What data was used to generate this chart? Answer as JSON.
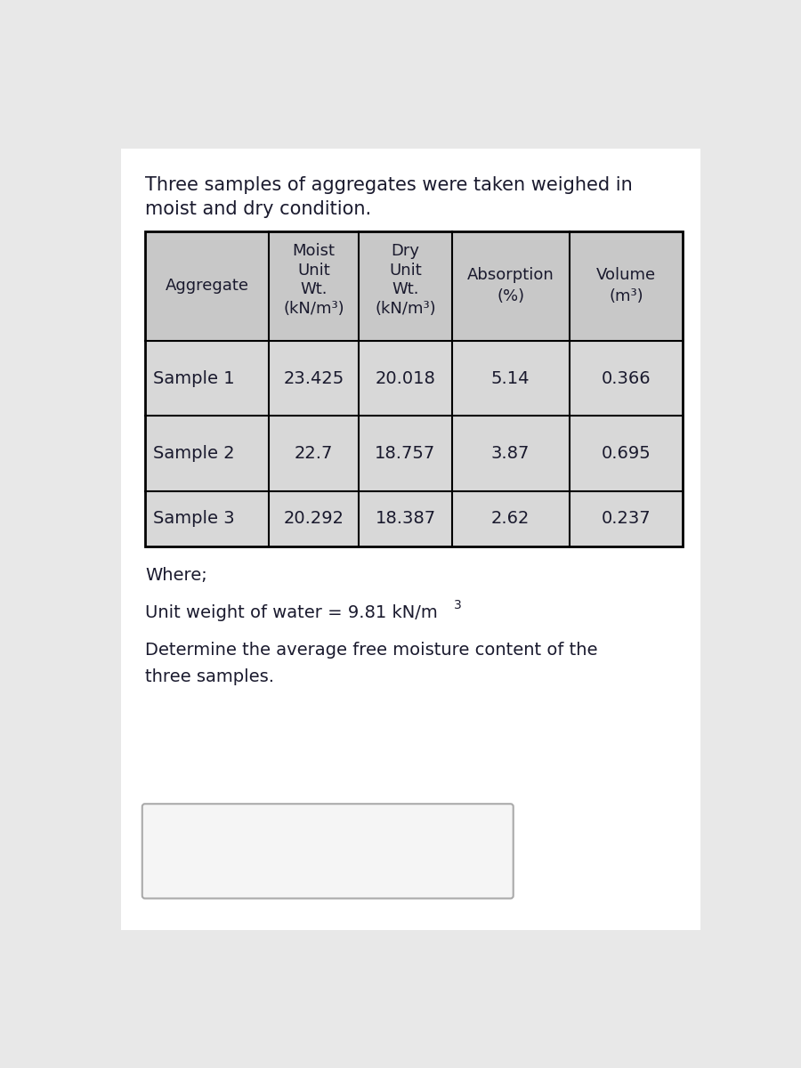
{
  "title_line1": "Three samples of aggregates were taken weighed in",
  "title_line2": "moist and dry condition.",
  "rows": [
    [
      "Sample 1",
      "23.425",
      "20.018",
      "5.14",
      "0.366"
    ],
    [
      "Sample 2",
      "22.7",
      "18.757",
      "3.87",
      "0.695"
    ],
    [
      "Sample 3",
      "20.292",
      "18.387",
      "2.62",
      "0.237"
    ]
  ],
  "where_text": "Where;",
  "unit_weight_text": "Unit weight of water = 9.81 kN/m",
  "unit_weight_exp": "3",
  "question_line1": "Determine the average free moisture content of the",
  "question_line2": "three samples.",
  "page_bg": "#e8e8e8",
  "white_bg": "#ffffff",
  "header_bg": "#c8c8c8",
  "cell_bg": "#d8d8d8",
  "text_color": "#1a1a2e",
  "font_size": 14,
  "header_font_size": 13,
  "title_font_size": 15
}
